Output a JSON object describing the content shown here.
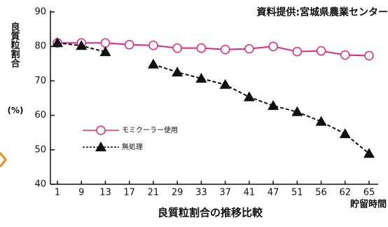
{
  "chart_data": {
    "type": "line",
    "title": "資料提供:宮城県農業センター",
    "subtitle": "良質粒割合の推移比較",
    "y_label": "良質粒割合",
    "y_unit": "(%)",
    "x_label": "貯留時間",
    "categories": [
      "1",
      "9",
      "13",
      "17",
      "21",
      "29",
      "33",
      "37",
      "41",
      "47",
      "51",
      "56",
      "62",
      "65"
    ],
    "series": [
      {
        "name": "モミクーラー使用",
        "color": "#e0287e",
        "marker": "circle",
        "dash": false,
        "values": [
          81,
          81,
          81,
          80.5,
          80.3,
          79.5,
          79.5,
          79.1,
          79.3,
          80,
          78.5,
          78.7,
          77.5,
          77.3
        ]
      },
      {
        "name": "無処理",
        "color": "#111111",
        "marker": "triangle",
        "dash": true,
        "values": [
          81,
          80.2,
          78.4,
          null,
          74.8,
          72.5,
          70.7,
          68.9,
          65.3,
          62.8,
          61,
          58.2,
          54.6,
          48.9
        ]
      }
    ],
    "ylim": [
      40,
      90
    ],
    "yticks": [
      40,
      50,
      60,
      70,
      80,
      90
    ]
  }
}
